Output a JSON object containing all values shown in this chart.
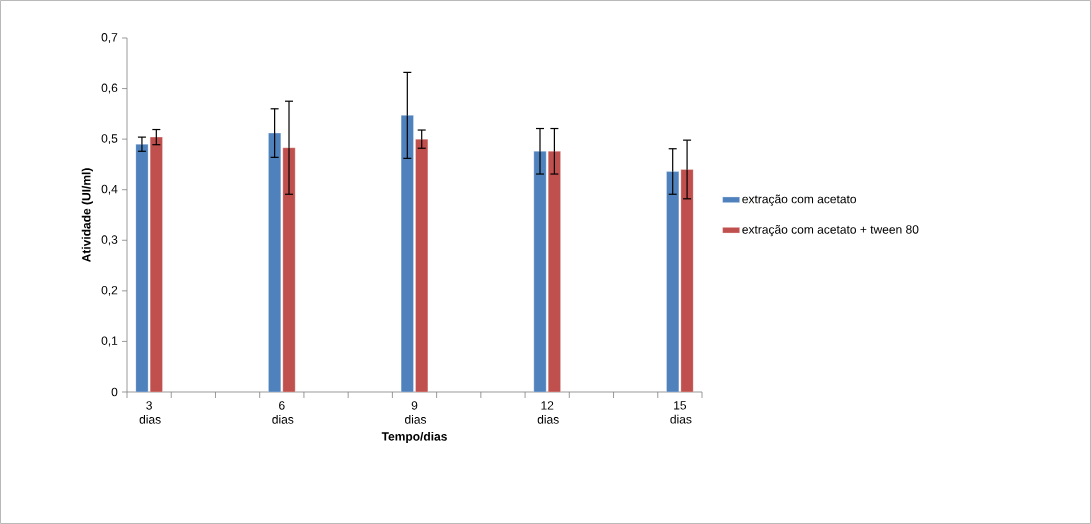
{
  "chart_data": {
    "type": "bar",
    "xlabel": "Tempo/dias",
    "ylabel": "Atividade (UI/ml)",
    "categories": [
      "3 dias",
      null,
      null,
      "6 dias",
      null,
      null,
      "9 dias",
      null,
      null,
      "12 dias",
      null,
      null,
      "15 dias"
    ],
    "series": [
      {
        "name": "extração com acetato",
        "color": "#4f81bd",
        "values": [
          0.49,
          null,
          null,
          0.512,
          null,
          null,
          0.547,
          null,
          null,
          0.476,
          null,
          null,
          0.436
        ],
        "errors": [
          0.014,
          null,
          null,
          0.048,
          null,
          null,
          0.085,
          null,
          null,
          0.045,
          null,
          null,
          0.045
        ]
      },
      {
        "name": "extração com acetato + tween 80",
        "color": "#c0504d",
        "values": [
          0.504,
          null,
          null,
          0.483,
          null,
          null,
          0.5,
          null,
          null,
          0.476,
          null,
          null,
          0.44
        ],
        "errors": [
          0.015,
          null,
          null,
          0.092,
          null,
          null,
          0.018,
          null,
          null,
          0.045,
          null,
          null,
          0.058
        ]
      }
    ],
    "ylim": [
      0,
      0.7
    ],
    "yticks": [
      {
        "value": 0,
        "label": "0"
      },
      {
        "value": 0.1,
        "label": "0,1"
      },
      {
        "value": 0.2,
        "label": "0,2"
      },
      {
        "value": 0.3,
        "label": "0,3"
      },
      {
        "value": 0.4,
        "label": "0,4"
      },
      {
        "value": 0.5,
        "label": "0,5"
      },
      {
        "value": 0.6,
        "label": "0,6"
      },
      {
        "value": 0.7,
        "label": "0,7"
      }
    ],
    "legend": "right",
    "grid": false
  }
}
